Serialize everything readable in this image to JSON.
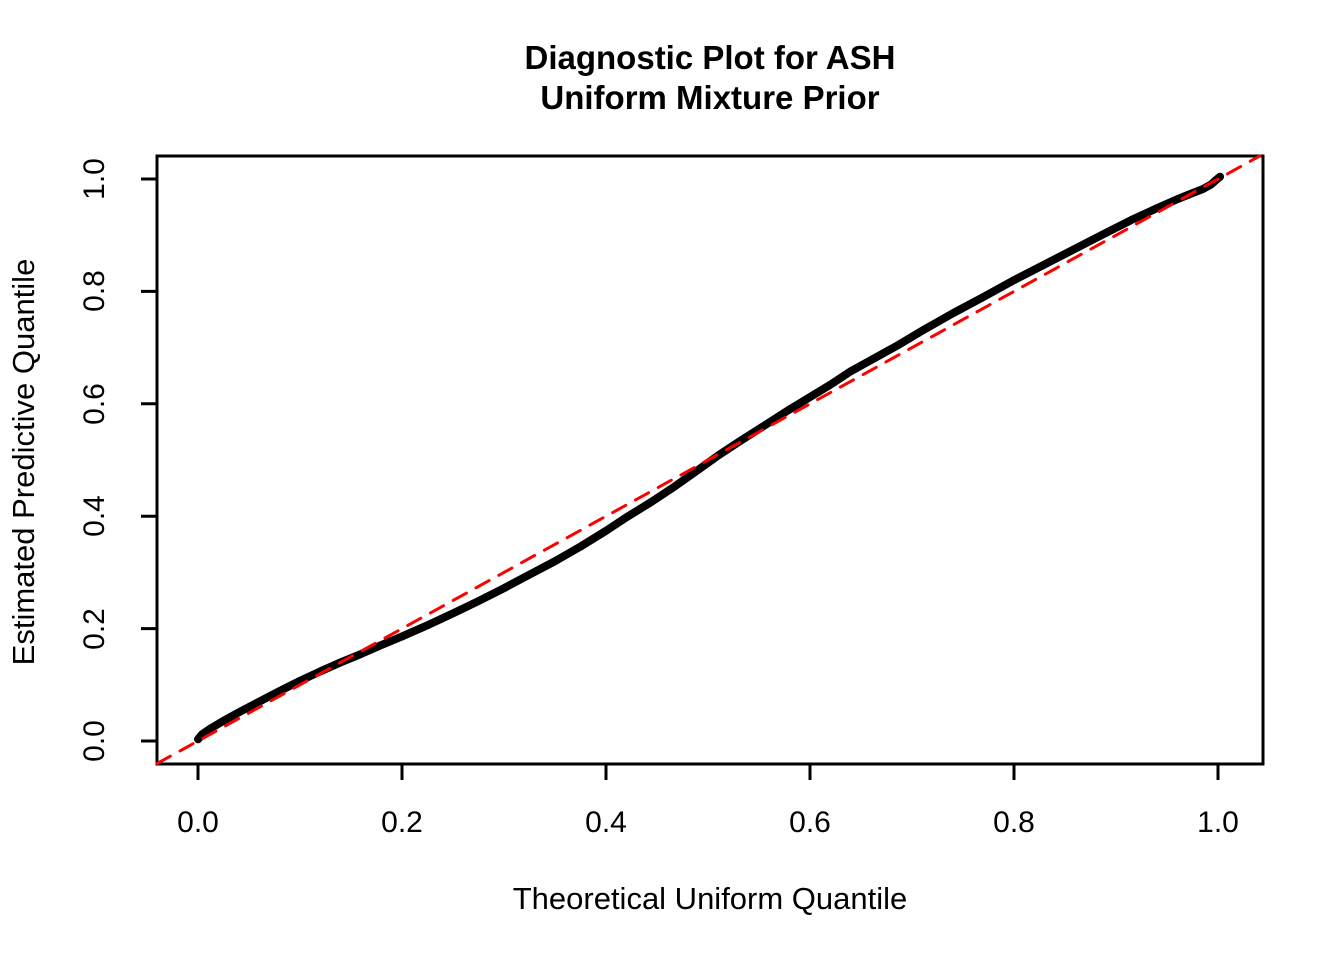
{
  "figure": {
    "background_color": "#ffffff",
    "foreground_color": "#000000"
  },
  "chart_data": {
    "type": "line",
    "title": "Diagnostic Plot for ASH Uniform Mixture Prior",
    "title_display": "Diagnostic Plot for ASH\nUniform Mixture Prior",
    "xlabel": "Theoretical Uniform Quantile",
    "ylabel": "Estimated Predictive Quantile",
    "xlim": [
      -0.04,
      1.04
    ],
    "ylim": [
      -0.04,
      1.04
    ],
    "grid": false,
    "legend": "none",
    "x_tick_labels": [
      "0.0",
      "0.2",
      "0.4",
      "0.6",
      "0.8",
      "1.0"
    ],
    "x_tick_values": [
      0.0,
      0.2,
      0.4,
      0.6,
      0.8,
      1.0
    ],
    "y_tick_labels": [
      "0.0",
      "0.2",
      "0.4",
      "0.6",
      "0.8",
      "1.0"
    ],
    "y_tick_values": [
      0.0,
      0.2,
      0.4,
      0.6,
      0.8,
      1.0
    ],
    "series": [
      {
        "name": "qq-curve",
        "description": "estimated predictive quantile vs theoretical uniform quantile",
        "color": "#000000",
        "line_width": 8,
        "dash": null,
        "points": [
          [
            0.0,
            0.003
          ],
          [
            0.004,
            0.012
          ],
          [
            0.012,
            0.022
          ],
          [
            0.025,
            0.036
          ],
          [
            0.04,
            0.051
          ],
          [
            0.06,
            0.07
          ],
          [
            0.08,
            0.089
          ],
          [
            0.1,
            0.107
          ],
          [
            0.12,
            0.124
          ],
          [
            0.14,
            0.14
          ],
          [
            0.16,
            0.155
          ],
          [
            0.18,
            0.171
          ],
          [
            0.2,
            0.186
          ],
          [
            0.225,
            0.206
          ],
          [
            0.25,
            0.227
          ],
          [
            0.275,
            0.249
          ],
          [
            0.3,
            0.272
          ],
          [
            0.325,
            0.296
          ],
          [
            0.35,
            0.32
          ],
          [
            0.375,
            0.346
          ],
          [
            0.4,
            0.374
          ],
          [
            0.42,
            0.398
          ],
          [
            0.445,
            0.426
          ],
          [
            0.465,
            0.45
          ],
          [
            0.49,
            0.482
          ],
          [
            0.51,
            0.508
          ],
          [
            0.53,
            0.532
          ],
          [
            0.555,
            0.561
          ],
          [
            0.58,
            0.59
          ],
          [
            0.6,
            0.612
          ],
          [
            0.62,
            0.634
          ],
          [
            0.64,
            0.658
          ],
          [
            0.66,
            0.678
          ],
          [
            0.685,
            0.703
          ],
          [
            0.71,
            0.73
          ],
          [
            0.74,
            0.761
          ],
          [
            0.77,
            0.79
          ],
          [
            0.8,
            0.82
          ],
          [
            0.83,
            0.848
          ],
          [
            0.86,
            0.876
          ],
          [
            0.89,
            0.904
          ],
          [
            0.915,
            0.927
          ],
          [
            0.94,
            0.948
          ],
          [
            0.96,
            0.964
          ],
          [
            0.975,
            0.975
          ],
          [
            0.985,
            0.982
          ],
          [
            0.993,
            0.99
          ],
          [
            0.998,
            0.998
          ],
          [
            1.002,
            1.004
          ]
        ]
      },
      {
        "name": "reference-line",
        "description": "y = x identity reference",
        "color": "#ff0000",
        "line_width": 3,
        "dash": [
          15,
          11
        ],
        "points": [
          [
            -0.04,
            -0.04
          ],
          [
            1.041,
            1.041
          ]
        ]
      }
    ]
  }
}
